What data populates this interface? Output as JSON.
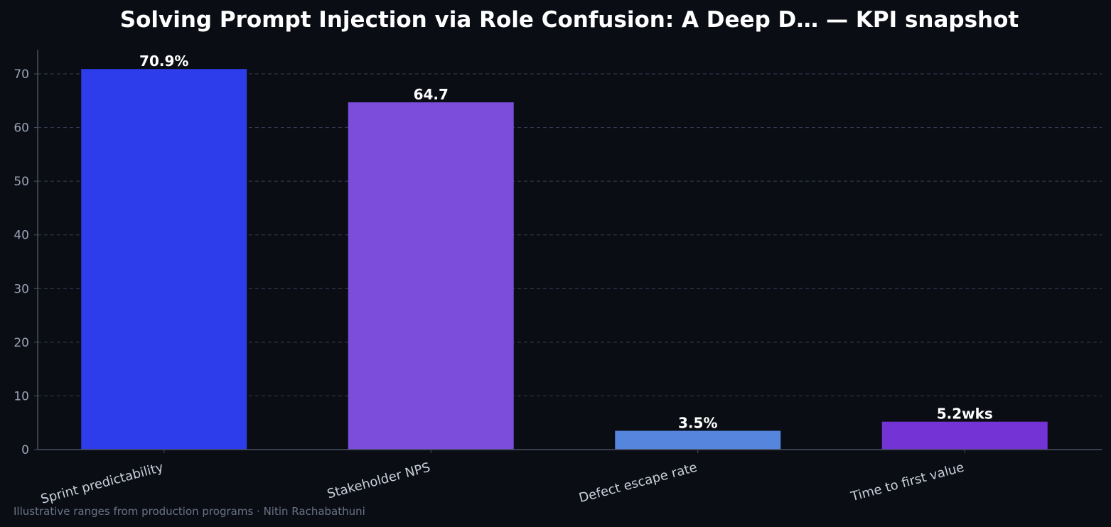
{
  "chart_data": {
    "type": "bar",
    "title": "Solving Prompt Injection via Role Confusion: A Deep D… — KPI snapshot",
    "xlabel": "",
    "ylabel": "",
    "categories": [
      "Sprint predictability",
      "Stakeholder NPS",
      "Defect escape rate",
      "Time to first value"
    ],
    "values": [
      70.9,
      64.7,
      3.5,
      5.2
    ],
    "value_labels": [
      "70.9%",
      "64.7",
      "3.5%",
      "5.2wks"
    ],
    "bar_colors": [
      "#2d3deb",
      "#7c4ddb",
      "#5585dd",
      "#7433d5"
    ],
    "ylim": [
      0,
      74.5
    ],
    "yticks": [
      0,
      10,
      20,
      30,
      40,
      50,
      60,
      70
    ],
    "grid": true,
    "legend": "none"
  },
  "footnote": "Illustrative ranges from production programs · Nitin Rachabathuni",
  "colors": {
    "background": "#0a0d14",
    "grid": "#3a3f55",
    "axis": "#4a5060"
  }
}
